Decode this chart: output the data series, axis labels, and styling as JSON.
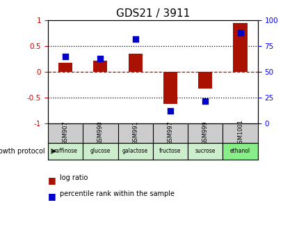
{
  "title": "GDS21 / 3911",
  "samples": [
    "GSM907",
    "GSM990",
    "GSM991",
    "GSM997",
    "GSM999",
    "GSM1001"
  ],
  "conditions": [
    "raffinose",
    "glucose",
    "galactose",
    "fructose",
    "sucrose",
    "ethanol"
  ],
  "log_ratio": [
    0.18,
    0.22,
    0.35,
    -0.62,
    -0.32,
    0.95
  ],
  "percentile_rank": [
    0.65,
    0.63,
    0.82,
    0.12,
    0.22,
    0.88
  ],
  "bar_color": "#aa1100",
  "dot_color": "#0000cc",
  "ylim_left": [
    -1,
    1
  ],
  "ylim_right": [
    0,
    100
  ],
  "yticks_left": [
    -1,
    -0.5,
    0,
    0.5,
    1
  ],
  "yticks_right": [
    0,
    25,
    50,
    75,
    100
  ],
  "bg_color": "#ffffff",
  "sample_bg": "#cccccc",
  "condition_colors": [
    "#cceecc",
    "#cceecc",
    "#cceecc",
    "#cceecc",
    "#cceecc",
    "#88ee88"
  ],
  "bar_width": 0.4,
  "dot_size": 35,
  "title_fontsize": 11,
  "tick_fontsize": 7.5,
  "legend_label_ratio": "log ratio",
  "legend_label_pct": "percentile rank within the sample"
}
